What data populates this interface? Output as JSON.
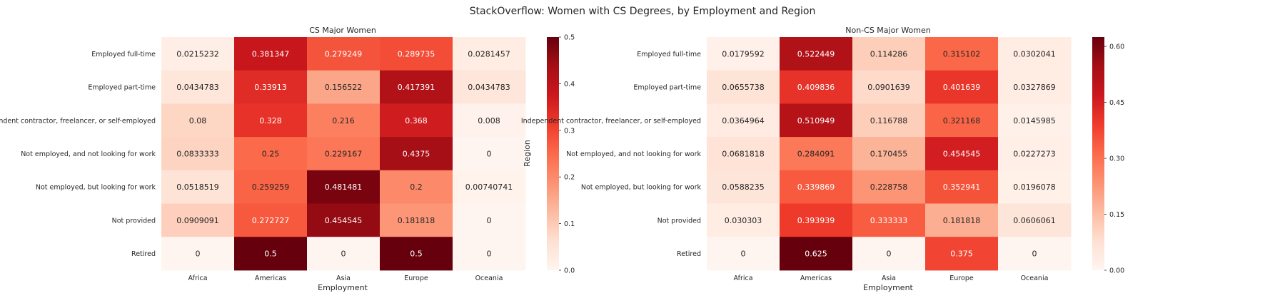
{
  "figure": {
    "suptitle": "StackOverflow: Women with CS Degrees, by Employment and Region"
  },
  "colormap": {
    "name": "Reds",
    "stops": [
      "#fff5f0",
      "#fee0d2",
      "#fcbba1",
      "#fc9272",
      "#fb6a4a",
      "#ef3b2c",
      "#cb181d",
      "#a50f15",
      "#67000d"
    ]
  },
  "chart_data": [
    {
      "type": "heatmap",
      "title": "CS Major Women",
      "xlabel": "Employment",
      "ylabel": "Region",
      "columns": [
        "Africa",
        "Americas",
        "Asia",
        "Europe",
        "Oceania"
      ],
      "rows": [
        "Employed full-time",
        "Employed part-time",
        "Independent contractor, freelancer, or self-employed",
        "Not employed, and not looking for work",
        "Not employed, but looking for work",
        "Not provided",
        "Retired"
      ],
      "values": [
        [
          0.0215232,
          0.381347,
          0.279249,
          0.289735,
          0.0281457
        ],
        [
          0.0434783,
          0.33913,
          0.156522,
          0.417391,
          0.0434783
        ],
        [
          0.08,
          0.328,
          0.216,
          0.368,
          0.008
        ],
        [
          0.0833333,
          0.25,
          0.229167,
          0.4375,
          0
        ],
        [
          0.0518519,
          0.259259,
          0.481481,
          0.2,
          0.00740741
        ],
        [
          0.0909091,
          0.272727,
          0.454545,
          0.181818,
          0
        ],
        [
          0,
          0.5,
          0,
          0.5,
          0
        ]
      ],
      "colorbar": {
        "range": [
          0,
          0.5
        ],
        "ticks": [
          "0.0",
          "0.1",
          "0.2",
          "0.3",
          "0.4",
          "0.5"
        ]
      }
    },
    {
      "type": "heatmap",
      "title": "Non-CS Major Women",
      "xlabel": "Employment",
      "ylabel": "",
      "columns": [
        "Africa",
        "Americas",
        "Asia",
        "Europe",
        "Oceania"
      ],
      "rows": [
        "Employed full-time",
        "Employed part-time",
        "Independent contractor, freelancer, or self-employed",
        "Not employed, and not looking for work",
        "Not employed, but looking for work",
        "Not provided",
        "Retired"
      ],
      "values": [
        [
          0.0179592,
          0.522449,
          0.114286,
          0.315102,
          0.0302041
        ],
        [
          0.0655738,
          0.409836,
          0.0901639,
          0.401639,
          0.0327869
        ],
        [
          0.0364964,
          0.510949,
          0.116788,
          0.321168,
          0.0145985
        ],
        [
          0.0681818,
          0.284091,
          0.170455,
          0.454545,
          0.0227273
        ],
        [
          0.0588235,
          0.339869,
          0.228758,
          0.352941,
          0.0196078
        ],
        [
          0.030303,
          0.393939,
          0.333333,
          0.181818,
          0.0606061
        ],
        [
          0,
          0.625,
          0,
          0.375,
          0
        ]
      ],
      "colorbar": {
        "range": [
          0,
          0.625
        ],
        "ticks": [
          "0.00",
          "0.15",
          "0.30",
          "0.45",
          "0.60"
        ]
      }
    }
  ]
}
